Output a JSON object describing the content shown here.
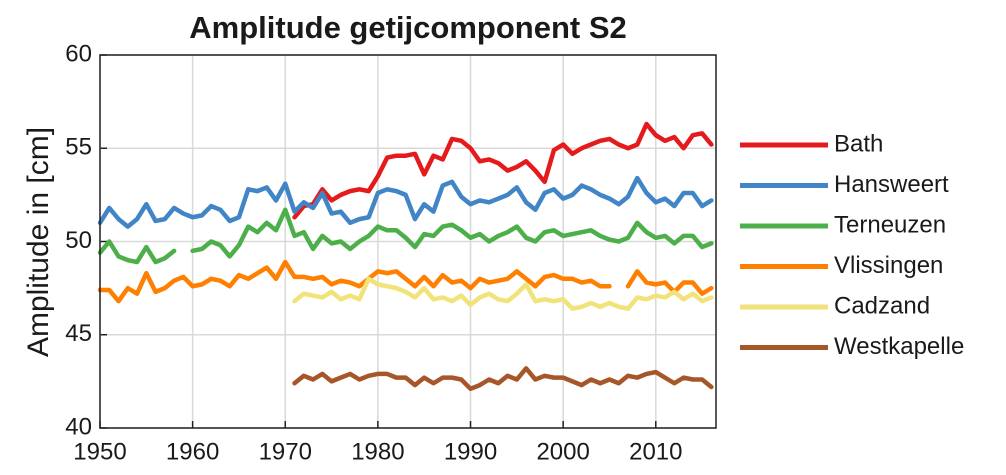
{
  "chart_data": {
    "type": "line",
    "title": "Amplitude getijcomponent S2",
    "ylabel": "Amplitude in [cm]",
    "x": [
      1950,
      1951,
      1952,
      1953,
      1954,
      1955,
      1956,
      1957,
      1958,
      1959,
      1960,
      1961,
      1962,
      1963,
      1964,
      1965,
      1966,
      1967,
      1968,
      1969,
      1970,
      1971,
      1972,
      1973,
      1974,
      1975,
      1976,
      1977,
      1978,
      1979,
      1980,
      1981,
      1982,
      1983,
      1984,
      1985,
      1986,
      1987,
      1988,
      1989,
      1990,
      1991,
      1992,
      1993,
      1994,
      1995,
      1996,
      1997,
      1998,
      1999,
      2000,
      2001,
      2002,
      2003,
      2004,
      2005,
      2006,
      2007,
      2008,
      2009,
      2010,
      2011,
      2012,
      2013,
      2014,
      2015,
      2016
    ],
    "xlim": [
      1950,
      2016.5
    ],
    "xticks": [
      1950,
      1960,
      1970,
      1980,
      1990,
      2000,
      2010
    ],
    "ylim": [
      40,
      60
    ],
    "yticks": [
      40,
      45,
      50,
      55,
      60
    ],
    "grid": true,
    "legend": "right",
    "series": [
      {
        "name": "Bath",
        "color": "#e41a1c",
        "values": [
          null,
          null,
          null,
          null,
          null,
          null,
          null,
          null,
          null,
          null,
          null,
          null,
          null,
          null,
          null,
          null,
          null,
          null,
          null,
          null,
          null,
          51.3,
          51.9,
          52.0,
          52.8,
          52.2,
          52.5,
          52.7,
          52.8,
          52.7,
          53.5,
          54.5,
          54.6,
          54.6,
          54.7,
          53.6,
          54.6,
          54.4,
          55.5,
          55.4,
          55.0,
          54.3,
          54.4,
          54.2,
          53.8,
          54.0,
          54.3,
          53.8,
          53.2,
          54.9,
          55.2,
          54.7,
          55.0,
          55.2,
          55.4,
          55.5,
          55.2,
          55.0,
          55.2,
          56.3,
          55.7,
          55.4,
          55.6,
          55.0,
          55.7,
          55.8,
          55.2
        ]
      },
      {
        "name": "Hansweert",
        "color": "#4285c6",
        "values": [
          51.0,
          51.8,
          51.2,
          50.8,
          51.2,
          52.0,
          51.1,
          51.2,
          51.8,
          51.5,
          51.3,
          51.4,
          51.9,
          51.7,
          51.1,
          51.3,
          52.8,
          52.7,
          52.9,
          52.2,
          53.1,
          51.6,
          52.1,
          51.8,
          52.6,
          51.5,
          51.6,
          51.0,
          51.2,
          51.3,
          52.6,
          52.8,
          52.7,
          52.5,
          51.2,
          52.0,
          51.6,
          53.0,
          53.2,
          52.4,
          52.0,
          52.2,
          52.1,
          52.3,
          52.5,
          52.9,
          52.1,
          51.7,
          52.6,
          52.8,
          52.3,
          52.5,
          53.0,
          52.8,
          52.5,
          52.3,
          52.0,
          52.4,
          53.4,
          52.6,
          52.1,
          52.3,
          51.9,
          52.6,
          52.6,
          51.9,
          52.2
        ]
      },
      {
        "name": "Terneuzen",
        "color": "#4daf4a",
        "values": [
          49.4,
          50.0,
          49.2,
          49.0,
          48.9,
          49.7,
          48.9,
          49.1,
          49.5,
          null,
          49.5,
          49.6,
          50.0,
          49.8,
          49.2,
          49.8,
          50.8,
          50.5,
          51.0,
          50.6,
          51.7,
          50.3,
          50.5,
          49.6,
          50.3,
          49.9,
          50.0,
          49.6,
          50.0,
          50.3,
          50.8,
          50.6,
          50.6,
          50.2,
          49.7,
          50.4,
          50.3,
          50.8,
          50.9,
          50.6,
          50.2,
          50.4,
          50.0,
          50.3,
          50.5,
          50.8,
          50.2,
          50.0,
          50.5,
          50.6,
          50.3,
          50.4,
          50.5,
          50.6,
          50.3,
          50.1,
          50.0,
          50.2,
          51.0,
          50.5,
          50.2,
          50.3,
          49.9,
          50.3,
          50.3,
          49.7,
          49.9
        ]
      },
      {
        "name": "Vlissingen",
        "color": "#ff7f00",
        "values": [
          47.4,
          47.4,
          46.8,
          47.5,
          47.2,
          48.3,
          47.3,
          47.5,
          47.9,
          48.1,
          47.6,
          47.7,
          48.0,
          47.9,
          47.6,
          48.2,
          48.0,
          48.3,
          48.6,
          48.0,
          48.9,
          48.1,
          48.1,
          48.0,
          48.1,
          47.7,
          47.9,
          47.8,
          47.6,
          48.0,
          48.4,
          48.3,
          48.4,
          48.0,
          47.6,
          48.1,
          47.6,
          48.2,
          47.8,
          47.9,
          47.5,
          48.0,
          47.8,
          47.9,
          48.0,
          48.4,
          48.0,
          47.6,
          48.1,
          48.2,
          48.0,
          48.0,
          47.8,
          47.9,
          47.6,
          47.6,
          null,
          47.6,
          48.4,
          47.8,
          47.7,
          47.8,
          47.3,
          47.8,
          47.8,
          47.2,
          47.5
        ]
      },
      {
        "name": "Cadzand",
        "color": "#f2e27a",
        "values": [
          null,
          null,
          null,
          null,
          null,
          null,
          null,
          null,
          null,
          null,
          null,
          null,
          null,
          null,
          null,
          null,
          null,
          null,
          null,
          null,
          null,
          46.8,
          47.2,
          47.1,
          47.0,
          47.3,
          46.9,
          47.1,
          46.9,
          48.0,
          47.7,
          47.6,
          47.5,
          47.3,
          47.0,
          47.5,
          46.9,
          47.0,
          46.8,
          47.1,
          46.6,
          47.0,
          47.2,
          46.9,
          46.8,
          47.2,
          47.7,
          46.8,
          46.9,
          46.8,
          46.9,
          46.4,
          46.5,
          46.7,
          46.5,
          46.7,
          46.5,
          46.4,
          47.0,
          46.9,
          47.1,
          47.0,
          47.3,
          46.9,
          47.2,
          46.8,
          47.0
        ]
      },
      {
        "name": "Westkapelle",
        "color": "#a65628",
        "values": [
          null,
          null,
          null,
          null,
          null,
          null,
          null,
          null,
          null,
          null,
          null,
          null,
          null,
          null,
          null,
          null,
          null,
          null,
          null,
          null,
          null,
          42.4,
          42.8,
          42.6,
          42.9,
          42.5,
          42.7,
          42.9,
          42.6,
          42.8,
          42.9,
          42.9,
          42.7,
          42.7,
          42.3,
          42.7,
          42.4,
          42.7,
          42.7,
          42.6,
          42.1,
          42.3,
          42.6,
          42.4,
          42.8,
          42.6,
          43.2,
          42.6,
          42.8,
          42.7,
          42.7,
          42.5,
          42.3,
          42.6,
          42.4,
          42.6,
          42.4,
          42.8,
          42.7,
          42.9,
          43.0,
          42.7,
          42.4,
          42.7,
          42.6,
          42.6,
          42.2
        ]
      }
    ]
  }
}
